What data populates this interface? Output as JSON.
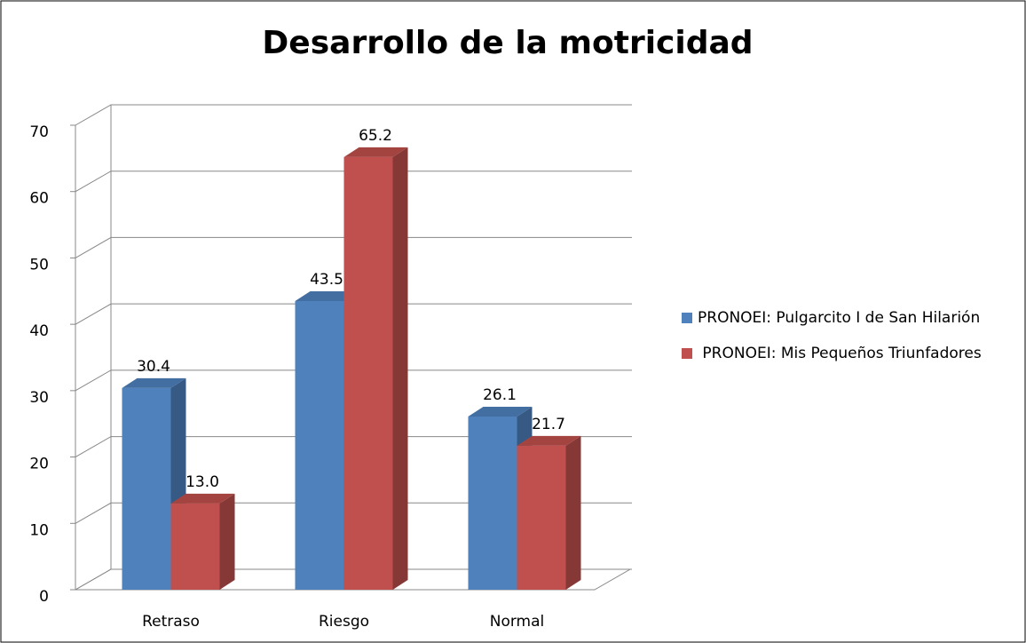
{
  "chart_data": {
    "type": "bar3d",
    "title": "Desarrollo de la motricidad",
    "categories": [
      "Retraso",
      "Riesgo",
      "Normal"
    ],
    "series": [
      {
        "name": "PRONOEI: Pulgarcito I de San Hilarión",
        "color": "#4f81bd",
        "values": [
          30.4,
          43.5,
          26.1
        ]
      },
      {
        "name": " PRONOEI: Mis Pequeños Triunfadores",
        "color": "#c0504d",
        "values": [
          13.0,
          65.2,
          21.7
        ],
        "value_labels": [
          "13.0",
          "65.2",
          "21.7"
        ]
      }
    ],
    "ylim": [
      0,
      70
    ],
    "yticks": [
      0,
      10,
      20,
      30,
      40,
      50,
      60,
      70
    ],
    "grid": true,
    "legend": "right"
  }
}
